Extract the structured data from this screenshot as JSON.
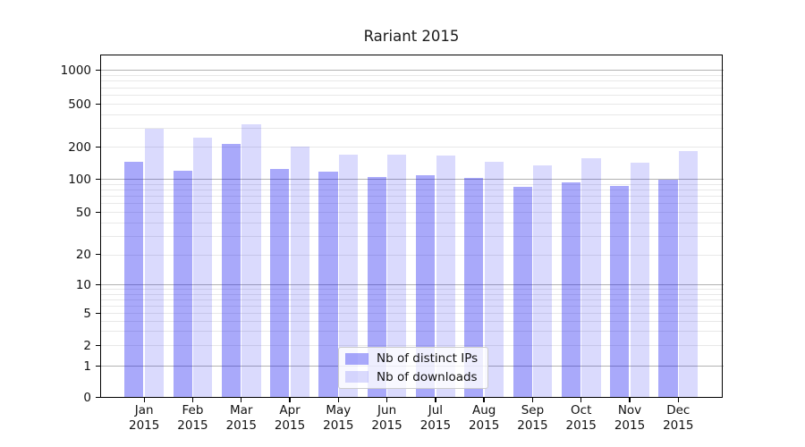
{
  "chart_data": {
    "type": "bar",
    "title": "Rariant 2015",
    "categories": [
      "Jan",
      "Feb",
      "Mar",
      "Apr",
      "May",
      "Jun",
      "Jul",
      "Aug",
      "Sep",
      "Oct",
      "Nov",
      "Dec"
    ],
    "category_year": "2015",
    "series": [
      {
        "name": "Nb of distinct IPs",
        "color": "rgba(10,10,240,0.35)",
        "values": [
          145,
          120,
          210,
          123,
          117,
          103,
          109,
          102,
          85,
          92,
          86,
          98
        ]
      },
      {
        "name": "Nb of downloads",
        "color": "rgba(10,10,240,0.15)",
        "values": [
          291,
          244,
          324,
          200,
          169,
          167,
          165,
          145,
          134,
          157,
          141,
          182
        ]
      }
    ],
    "yscale": "symlog-base10",
    "y_ticks": [
      0,
      1,
      2,
      5,
      10,
      20,
      50,
      100,
      200,
      500,
      1000
    ],
    "ylim": [
      0,
      1400
    ],
    "xlabel": "",
    "ylabel": "",
    "grid": "both",
    "grid_major_color": "#b2b2b2",
    "grid_minor_color": "#e8e8e8",
    "legend_position": "lower-center"
  }
}
